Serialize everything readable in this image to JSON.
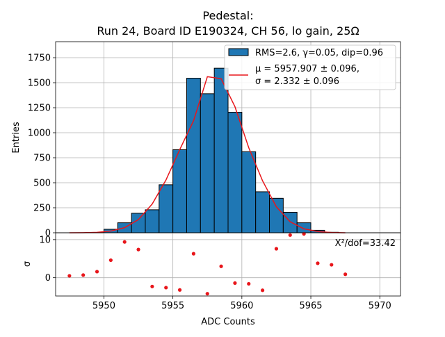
{
  "chart_data": [
    {
      "type": "bar",
      "title_line1": "Pedestal:",
      "title_line2": "Run 24, Board ID E190324, CH 56, lo gain, 25Ω",
      "xlabel": "ADC Counts",
      "ylabel": "Entries",
      "xlim": [
        5946.5,
        5971.5
      ],
      "ylim": [
        0,
        1910
      ],
      "grid": true,
      "legend_position": "top-right",
      "yticks": [
        0,
        250,
        500,
        750,
        1000,
        1250,
        1500,
        1750
      ],
      "ytick_labels": [
        "0",
        "250",
        "500",
        "750",
        "1000",
        "1250",
        "1500",
        "1750"
      ],
      "bar_color": "#1f77b4",
      "fit_color": "#e8161b",
      "series": [
        {
          "name": "RMS=2.6, γ=0.05, dip=0.96",
          "kind": "histogram",
          "bin_edges": [
            5947,
            5948,
            5949,
            5950,
            5951,
            5952,
            5953,
            5954,
            5955,
            5956,
            5957,
            5958,
            5959,
            5960,
            5961,
            5962,
            5963,
            5964,
            5965,
            5966,
            5967,
            5968
          ],
          "values": [
            0,
            0,
            2,
            35,
            100,
            195,
            230,
            480,
            830,
            1545,
            1390,
            1645,
            1205,
            810,
            410,
            345,
            205,
            100,
            25,
            5,
            0
          ]
        },
        {
          "name": "μ = 5957.907 ± 0.096,",
          "name_line2": "σ = 2.332 ± 0.096",
          "kind": "fit_line",
          "x": [
            5947.5,
            5948.5,
            5949.5,
            5950.5,
            5951.5,
            5952.5,
            5953.5,
            5954.5,
            5955.5,
            5956.5,
            5957.5,
            5958.5,
            5959.5,
            5960.5,
            5961.5,
            5962.5,
            5963.5,
            5964.5,
            5965.5,
            5966.5,
            5967.5
          ],
          "values": [
            0,
            1,
            4,
            17,
            51,
            132,
            287,
            528,
            832,
            1120,
            1560,
            1540,
            1260,
            850,
            520,
            260,
            110,
            40,
            12,
            3,
            0
          ]
        }
      ]
    },
    {
      "type": "scatter",
      "ylabel": "σ",
      "xlim": [
        5946.5,
        5971.5
      ],
      "ylim": [
        -4.8,
        11.8
      ],
      "grid": true,
      "annotation": "X²/dof=33.42",
      "xticks": [
        5950,
        5955,
        5960,
        5965,
        5970
      ],
      "xtick_labels": [
        "5950",
        "5955",
        "5960",
        "5965",
        "5970"
      ],
      "yticks": [
        0,
        10
      ],
      "ytick_labels": [
        "0",
        "10"
      ],
      "point_color": "#e8161b",
      "x": [
        5947.5,
        5948.5,
        5949.5,
        5950.5,
        5951.5,
        5952.5,
        5953.5,
        5954.5,
        5955.5,
        5956.5,
        5957.5,
        5958.5,
        5959.5,
        5960.5,
        5961.5,
        5962.5,
        5963.5,
        5964.5,
        5965.5,
        5966.5,
        5967.5
      ],
      "values": [
        0.5,
        0.7,
        1.6,
        4.6,
        9.4,
        7.4,
        -2.3,
        -2.6,
        -3.2,
        6.3,
        -4.2,
        3.0,
        -1.4,
        -1.6,
        -3.3,
        7.6,
        11.2,
        11.5,
        3.8,
        3.4,
        0.9
      ]
    }
  ]
}
